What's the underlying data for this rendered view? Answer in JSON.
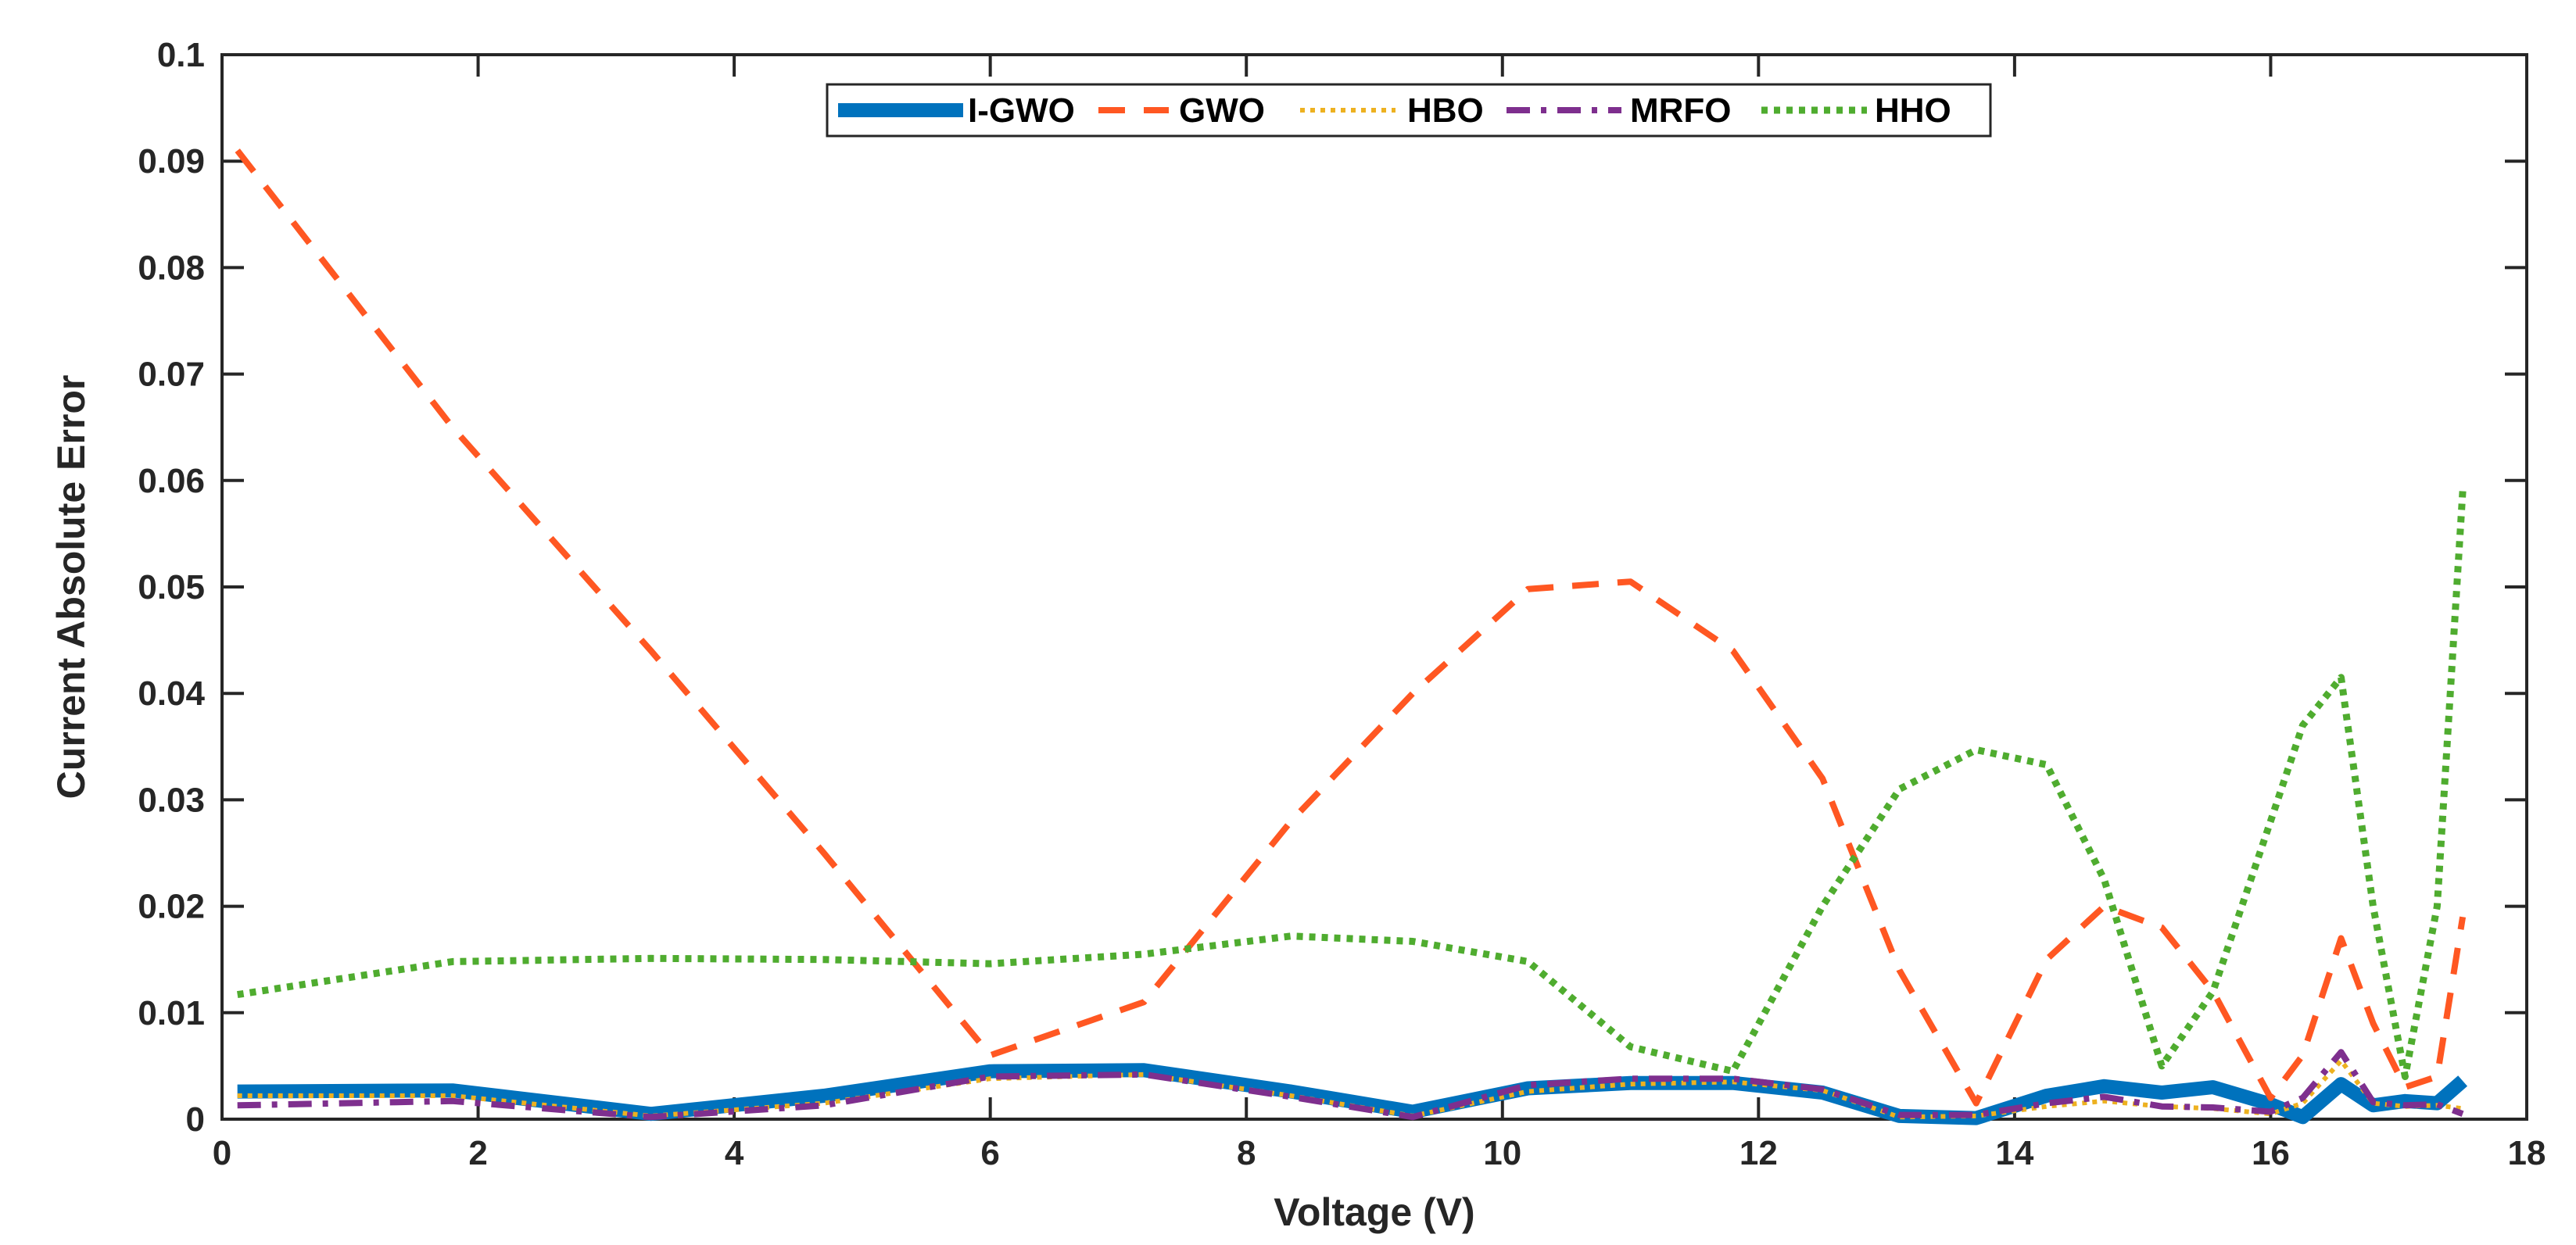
{
  "chart_data": {
    "type": "line",
    "title": "",
    "xlabel": "Voltage (V)",
    "ylabel": "Current Absolute Error",
    "xlim": [
      0,
      18
    ],
    "ylim": [
      0,
      0.1
    ],
    "xticks": [
      0,
      2,
      4,
      6,
      8,
      10,
      12,
      14,
      16,
      18
    ],
    "yticks": [
      0,
      0.01,
      0.02,
      0.03,
      0.04,
      0.05,
      0.06,
      0.07,
      0.08,
      0.09,
      0.1
    ],
    "xtick_labels": [
      "0",
      "2",
      "4",
      "6",
      "8",
      "10",
      "12",
      "14",
      "16",
      "18"
    ],
    "ytick_labels": [
      "0",
      "0.01",
      "0.02",
      "0.03",
      "0.04",
      "0.05",
      "0.06",
      "0.07",
      "0.08",
      "0.09",
      "0.1"
    ],
    "grid": false,
    "legend_position": "top-center",
    "x": [
      0.12,
      1.8,
      3.35,
      4.7,
      6.0,
      7.2,
      8.35,
      9.3,
      10.2,
      11.0,
      11.8,
      12.5,
      13.1,
      13.7,
      14.25,
      14.7,
      15.15,
      15.55,
      16.0,
      16.25,
      16.55,
      16.8,
      17.05,
      17.3,
      17.5
    ],
    "series": [
      {
        "name": "I-GWO",
        "color": "#0072BD",
        "style": "solid",
        "values": [
          0.0026,
          0.0027,
          0.0005,
          0.0022,
          0.0045,
          0.0046,
          0.0026,
          0.0007,
          0.0029,
          0.0034,
          0.0034,
          0.0025,
          0.0003,
          0.0001,
          0.0022,
          0.0031,
          0.0025,
          0.003,
          0.0014,
          0.0002,
          0.0033,
          0.0013,
          0.0017,
          0.0015,
          0.0036
        ]
      },
      {
        "name": "GWO",
        "color": "#FF5722",
        "style": "dashed",
        "values": [
          0.091,
          0.065,
          0.044,
          0.025,
          0.006,
          0.011,
          0.028,
          0.04,
          0.0498,
          0.0505,
          0.044,
          0.032,
          0.014,
          0.0015,
          0.015,
          0.02,
          0.018,
          0.012,
          0.002,
          0.006,
          0.017,
          0.009,
          0.003,
          0.004,
          0.019
        ]
      },
      {
        "name": "HBO",
        "color": "#EDB120",
        "style": "dotted",
        "values": [
          0.0022,
          0.0022,
          0.0003,
          0.0015,
          0.0038,
          0.0042,
          0.0022,
          0.0003,
          0.0026,
          0.0033,
          0.0035,
          0.0027,
          0.0002,
          0.0003,
          0.0012,
          0.0017,
          0.0012,
          0.001,
          0.0005,
          0.0015,
          0.0055,
          0.0015,
          0.0012,
          0.0013,
          0.001
        ]
      },
      {
        "name": "MRFO",
        "color": "#7E2F8E",
        "style": "dashdot",
        "values": [
          0.0013,
          0.0017,
          0.0002,
          0.0013,
          0.004,
          0.0042,
          0.0021,
          0.0002,
          0.0032,
          0.0038,
          0.0038,
          0.0028,
          0.0004,
          0.0004,
          0.0015,
          0.0021,
          0.0012,
          0.0011,
          0.0007,
          0.002,
          0.0063,
          0.0016,
          0.0013,
          0.0014,
          0.0005
        ]
      },
      {
        "name": "HHO",
        "color": "#4FAC2F",
        "style": "dotted-thick",
        "values": [
          0.0117,
          0.0148,
          0.0151,
          0.015,
          0.0146,
          0.0155,
          0.0172,
          0.0167,
          0.0148,
          0.0068,
          0.0045,
          0.02,
          0.031,
          0.0347,
          0.0333,
          0.0225,
          0.005,
          0.012,
          0.028,
          0.037,
          0.0415,
          0.02,
          0.004,
          0.02,
          0.059
        ]
      }
    ]
  }
}
